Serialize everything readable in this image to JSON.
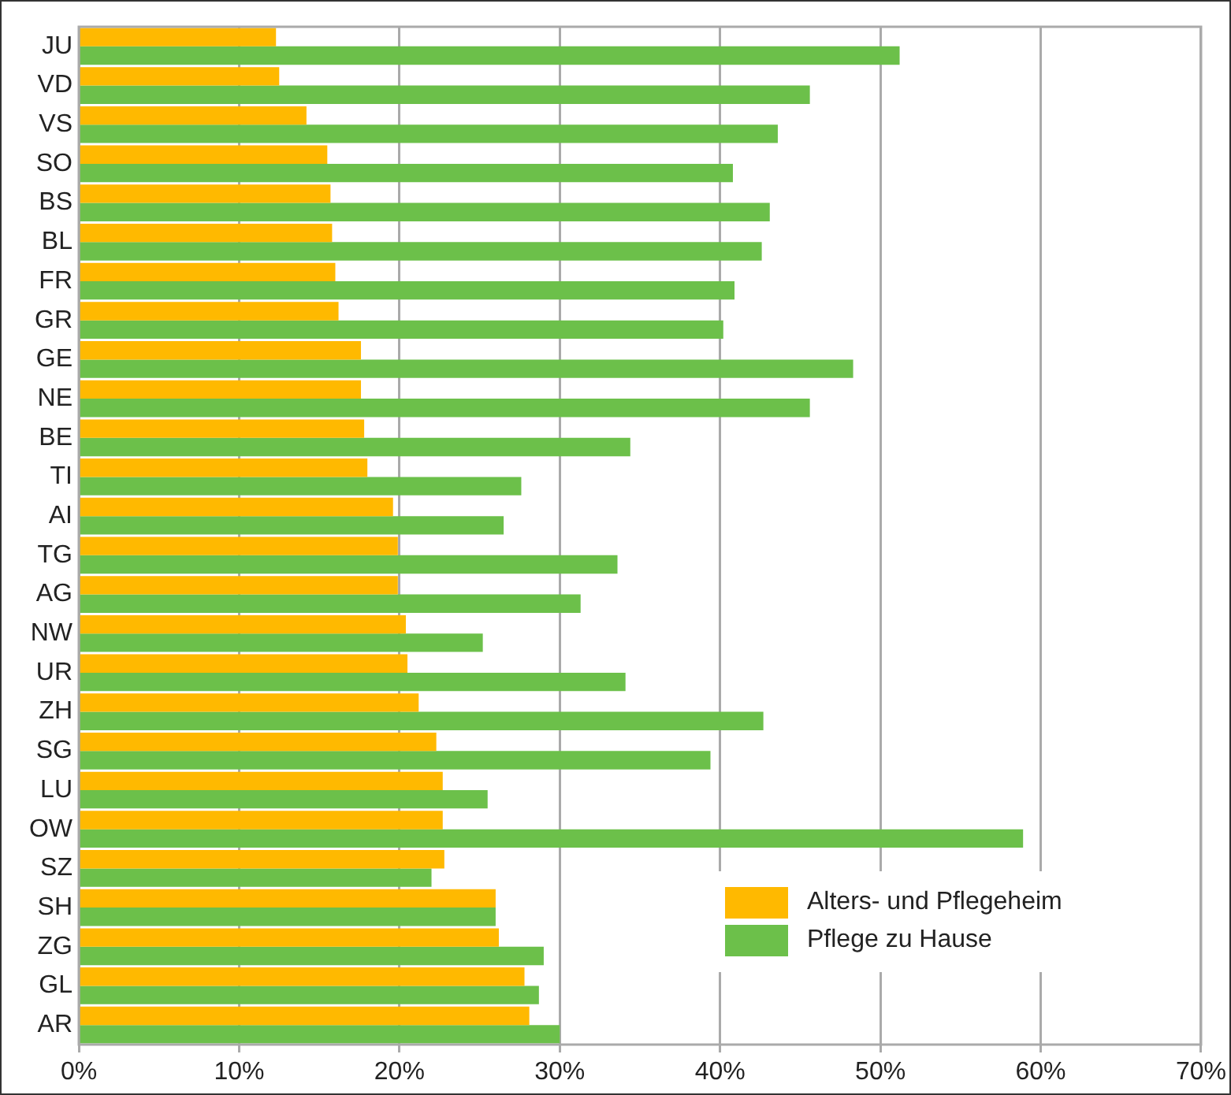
{
  "chart_data": {
    "type": "bar",
    "orientation": "horizontal",
    "categories": [
      "JU",
      "VD",
      "VS",
      "SO",
      "BS",
      "BL",
      "FR",
      "GR",
      "GE",
      "NE",
      "BE",
      "TI",
      "AI",
      "TG",
      "AG",
      "NW",
      "UR",
      "ZH",
      "SG",
      "LU",
      "OW",
      "SZ",
      "SH",
      "ZG",
      "GL",
      "AR"
    ],
    "series": [
      {
        "name": "Alters- und Pflegeheim",
        "color": "#ffb900",
        "values": [
          12.3,
          12.5,
          14.2,
          15.5,
          15.7,
          15.8,
          16.0,
          16.2,
          17.6,
          17.6,
          17.8,
          18.0,
          19.6,
          19.9,
          19.9,
          20.4,
          20.5,
          21.2,
          22.3,
          22.7,
          22.7,
          22.8,
          26.0,
          26.2,
          27.8,
          28.1
        ]
      },
      {
        "name": "Pflege zu Hause",
        "color": "#6cc04a",
        "values": [
          51.2,
          45.6,
          43.6,
          40.8,
          43.1,
          42.6,
          40.9,
          40.2,
          48.3,
          45.6,
          34.4,
          27.6,
          26.5,
          33.6,
          31.3,
          25.2,
          34.1,
          42.7,
          39.4,
          25.5,
          58.9,
          22.0,
          26.0,
          29.0,
          28.7,
          30.0
        ]
      }
    ],
    "xlim": [
      0,
      70
    ],
    "xticks": [
      {
        "value": 0,
        "label": "0%"
      },
      {
        "value": 10,
        "label": "10%"
      },
      {
        "value": 20,
        "label": "20%"
      },
      {
        "value": 30,
        "label": "30%"
      },
      {
        "value": 40,
        "label": "40%"
      },
      {
        "value": 50,
        "label": "50%"
      },
      {
        "value": 60,
        "label": "60%"
      },
      {
        "value": 70,
        "label": "70%"
      }
    ],
    "grid": "x",
    "legend": "bottom right"
  }
}
